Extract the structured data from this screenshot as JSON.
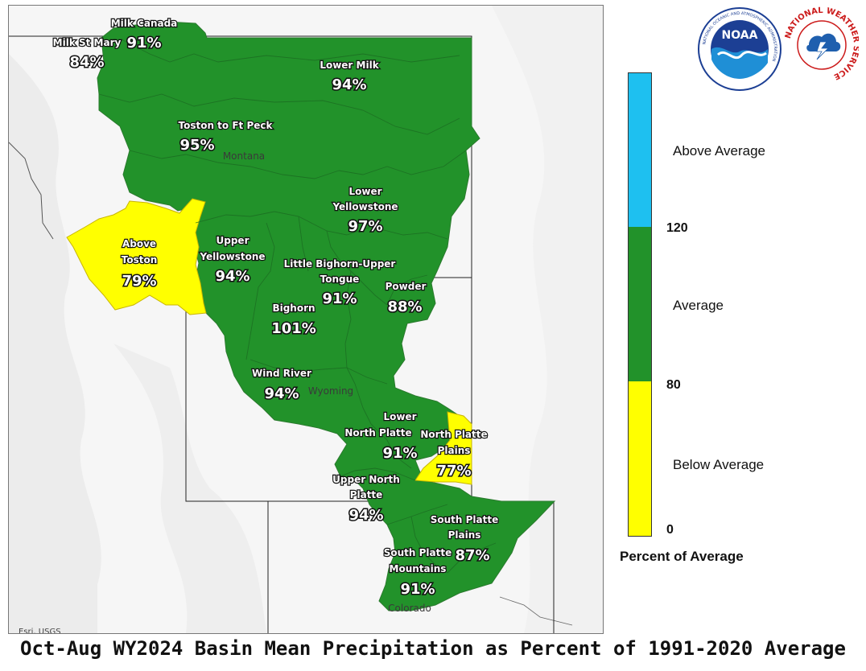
{
  "title": "Oct-Aug WY2024 Basin Mean Precipitation as Percent of 1991-2020 Average",
  "attribution": "Esri, USGS",
  "colors": {
    "above": "#1ec0f0",
    "average": "#22922a",
    "below": "#ffff00",
    "border": "#2b7a2e"
  },
  "state_labels": {
    "montana": "Montana",
    "wyoming": "Wyoming",
    "colorado": "Colorado"
  },
  "basins": [
    {
      "id": "milk-canada",
      "name": "Milk Canada",
      "value": "91%",
      "category": "average"
    },
    {
      "id": "milk-st-mary",
      "name": "Milk St Mary",
      "value": "84%",
      "category": "average"
    },
    {
      "id": "lower-milk",
      "name": "Lower Milk",
      "value": "94%",
      "category": "average"
    },
    {
      "id": "toston-to-ft-peck",
      "name": "Toston to Ft Peck",
      "value": "95%",
      "category": "average"
    },
    {
      "id": "lower-yellowstone",
      "name_lines": [
        "Lower",
        "Yellowstone"
      ],
      "value": "97%",
      "category": "average"
    },
    {
      "id": "above-toston",
      "name_lines": [
        "Above",
        "Toston"
      ],
      "value": "79%",
      "category": "below"
    },
    {
      "id": "upper-yellowstone",
      "name_lines": [
        "Upper",
        "Yellowstone"
      ],
      "value": "94%",
      "category": "average"
    },
    {
      "id": "little-bighorn-upper-tongue",
      "name_lines": [
        "Little Bighorn-Upper",
        "Tongue"
      ],
      "value": "91%",
      "category": "average"
    },
    {
      "id": "powder",
      "name": "Powder",
      "value": "88%",
      "category": "average"
    },
    {
      "id": "bighorn",
      "name": "Bighorn",
      "value": "101%",
      "category": "average"
    },
    {
      "id": "wind-river",
      "name": "Wind River",
      "value": "94%",
      "category": "average"
    },
    {
      "id": "lower-north-platte",
      "name_lines": [
        "Lower",
        "North Platte"
      ],
      "value": "91%",
      "category": "average"
    },
    {
      "id": "north-platte-plains",
      "name_lines": [
        "North Platte",
        "Plains"
      ],
      "value": "77%",
      "category": "below"
    },
    {
      "id": "upper-north-platte",
      "name_lines": [
        "Upper North",
        "Platte"
      ],
      "value": "94%",
      "category": "average"
    },
    {
      "id": "south-platte-plains",
      "name_lines": [
        "South Platte",
        "Plains"
      ],
      "value": "87%",
      "category": "average"
    },
    {
      "id": "south-platte-mountains",
      "name_lines": [
        "South Platte",
        "Mountains"
      ],
      "value": "91%",
      "category": "average"
    }
  ],
  "legend": {
    "title": "Percent of Average",
    "categories": [
      {
        "label": "Above Average",
        "color": "#1ec0f0"
      },
      {
        "label": "Average",
        "color": "#22922a"
      },
      {
        "label": "Below Average",
        "color": "#ffff00"
      }
    ],
    "ticks": [
      "120",
      "80",
      "0"
    ]
  },
  "logos": {
    "noaa": {
      "center_text": "NOAA",
      "ring_text": "NATIONAL OCEANIC AND ATMOSPHERIC ADMINISTRATION",
      "bottom_text": "U.S. DEPARTMENT OF COMMERCE"
    },
    "nws": {
      "ring_text": "NATIONAL WEATHER SERVICE"
    }
  }
}
